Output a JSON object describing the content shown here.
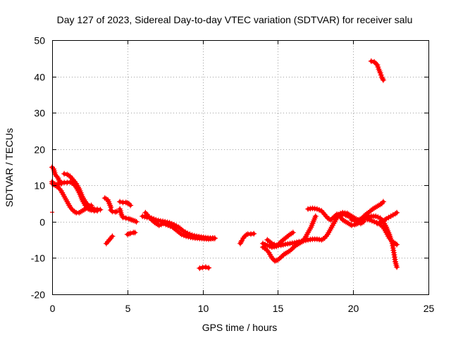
{
  "chart_data": {
    "type": "scatter",
    "title": "Day 127 of 2023, Sidereal Day-to-day VTEC variation (SDTVAR) for receiver salu",
    "xlabel": "GPS time / hours",
    "ylabel": "SDTVAR / TECUs",
    "xlim": [
      0,
      25
    ],
    "ylim": [
      -20,
      50
    ],
    "x_ticks": [
      0,
      5,
      10,
      15,
      20,
      25
    ],
    "y_ticks": [
      -20,
      -10,
      0,
      10,
      20,
      30,
      40,
      50
    ],
    "x_tick_labels": [
      "0",
      "5",
      "10",
      "15",
      "20",
      "25"
    ],
    "y_tick_labels": [
      "-20",
      "-10",
      "0",
      "10",
      "20",
      "30",
      "40",
      "50"
    ],
    "grid": true,
    "legend": "none",
    "marker": "plus",
    "color": "#ff0000",
    "series": [
      {
        "name": "s1",
        "points": [
          [
            0.0,
            15.0
          ],
          [
            0.1,
            14.5
          ],
          [
            0.2,
            13.0
          ],
          [
            0.3,
            12.5
          ],
          [
            0.4,
            12.0
          ],
          [
            0.5,
            11.0
          ],
          [
            0.6,
            10.5
          ]
        ]
      },
      {
        "name": "s2",
        "points": [
          [
            0.0,
            11.0
          ],
          [
            0.1,
            10.5
          ],
          [
            0.2,
            10.3
          ],
          [
            0.3,
            10.2
          ],
          [
            0.5,
            10.5
          ],
          [
            0.8,
            10.8
          ],
          [
            1.0,
            10.8
          ],
          [
            1.2,
            10.9
          ],
          [
            1.4,
            10.5
          ],
          [
            1.6,
            9.5
          ],
          [
            1.8,
            8.0
          ],
          [
            2.0,
            6.0
          ],
          [
            2.2,
            4.5
          ],
          [
            2.4,
            3.5
          ],
          [
            2.6,
            3.2
          ],
          [
            2.8,
            3.0
          ],
          [
            3.0,
            3.0
          ]
        ]
      },
      {
        "name": "s3",
        "points": [
          [
            0.0,
            10.5
          ],
          [
            0.2,
            10.0
          ],
          [
            0.4,
            9.5
          ],
          [
            0.6,
            8.5
          ],
          [
            0.8,
            7.0
          ],
          [
            1.0,
            5.5
          ],
          [
            1.2,
            4.0
          ],
          [
            1.4,
            3.0
          ],
          [
            1.6,
            2.5
          ],
          [
            1.8,
            2.5
          ],
          [
            2.0,
            3.0
          ],
          [
            2.2,
            3.5
          ],
          [
            2.4,
            4.0
          ],
          [
            2.6,
            4.5
          ]
        ]
      },
      {
        "name": "s4",
        "points": [
          [
            0.8,
            13.2
          ],
          [
            1.0,
            13.0
          ],
          [
            1.2,
            12.5
          ],
          [
            1.4,
            11.5
          ],
          [
            1.6,
            10.5
          ],
          [
            1.8,
            9.0
          ],
          [
            2.0,
            7.0
          ],
          [
            2.2,
            5.5
          ],
          [
            2.4,
            4.5
          ],
          [
            2.6,
            3.8
          ],
          [
            2.8,
            3.5
          ],
          [
            3.0,
            3.4
          ],
          [
            3.2,
            3.3
          ]
        ]
      },
      {
        "name": "s5",
        "points": [
          [
            3.5,
            6.5
          ],
          [
            3.7,
            6.0
          ],
          [
            3.8,
            5.0
          ],
          [
            3.9,
            4.0
          ],
          [
            3.9,
            3.2
          ],
          [
            4.0,
            2.8
          ],
          [
            4.2,
            2.7
          ],
          [
            4.3,
            2.8
          ]
        ]
      },
      {
        "name": "s6",
        "points": [
          [
            3.6,
            -6.0
          ],
          [
            3.7,
            -5.5
          ],
          [
            3.8,
            -5.0
          ],
          [
            3.9,
            -4.5
          ],
          [
            4.0,
            -4.0
          ]
        ]
      },
      {
        "name": "s7",
        "points": [
          [
            4.5,
            5.5
          ],
          [
            4.7,
            5.3
          ],
          [
            4.9,
            5.3
          ],
          [
            5.1,
            5.0
          ],
          [
            5.2,
            4.5
          ]
        ]
      },
      {
        "name": "s8",
        "points": [
          [
            4.5,
            3.5
          ],
          [
            4.6,
            2.0
          ],
          [
            4.7,
            1.2
          ],
          [
            4.9,
            1.0
          ],
          [
            5.1,
            0.8
          ],
          [
            5.3,
            0.5
          ],
          [
            5.5,
            0.2
          ],
          [
            5.6,
            0.0
          ]
        ]
      },
      {
        "name": "s9",
        "points": [
          [
            5.0,
            -3.5
          ],
          [
            5.2,
            -3.2
          ],
          [
            5.4,
            -3.0
          ],
          [
            5.5,
            -3.0
          ]
        ]
      },
      {
        "name": "s10",
        "points": [
          [
            6.0,
            1.5
          ],
          [
            6.3,
            1.2
          ],
          [
            6.6,
            1.0
          ],
          [
            6.9,
            0.5
          ],
          [
            7.2,
            0.2
          ],
          [
            7.5,
            0.0
          ],
          [
            7.8,
            -0.3
          ],
          [
            8.1,
            -0.8
          ],
          [
            8.4,
            -1.5
          ],
          [
            8.7,
            -2.5
          ],
          [
            9.0,
            -3.2
          ],
          [
            9.3,
            -3.7
          ],
          [
            9.6,
            -4.0
          ],
          [
            9.9,
            -4.2
          ],
          [
            10.2,
            -4.4
          ],
          [
            10.5,
            -4.5
          ],
          [
            10.8,
            -4.6
          ]
        ]
      },
      {
        "name": "s11",
        "points": [
          [
            6.2,
            2.5
          ],
          [
            6.5,
            1.0
          ],
          [
            6.8,
            -0.2
          ],
          [
            7.1,
            -1.0
          ],
          [
            7.4,
            -0.5
          ],
          [
            7.7,
            -1.0
          ],
          [
            8.0,
            -1.5
          ],
          [
            8.3,
            -2.5
          ],
          [
            8.6,
            -3.5
          ],
          [
            8.9,
            -4.0
          ],
          [
            9.2,
            -4.3
          ],
          [
            9.5,
            -4.5
          ],
          [
            9.8,
            -4.6
          ],
          [
            10.1,
            -4.7
          ],
          [
            10.4,
            -4.8
          ],
          [
            10.7,
            -4.6
          ],
          [
            10.8,
            -4.5
          ]
        ]
      },
      {
        "name": "s12",
        "points": [
          [
            9.8,
            -12.8
          ],
          [
            10.0,
            -12.6
          ],
          [
            10.2,
            -12.5
          ],
          [
            10.4,
            -12.7
          ]
        ]
      },
      {
        "name": "s13",
        "points": [
          [
            12.5,
            -6.0
          ],
          [
            12.6,
            -5.2
          ],
          [
            12.7,
            -4.5
          ],
          [
            12.8,
            -4.0
          ],
          [
            12.9,
            -3.6
          ],
          [
            13.0,
            -3.4
          ],
          [
            13.2,
            -3.4
          ],
          [
            13.4,
            -3.3
          ]
        ]
      },
      {
        "name": "s14",
        "points": [
          [
            14.0,
            -7.0
          ],
          [
            14.2,
            -7.5
          ],
          [
            14.4,
            -8.5
          ],
          [
            14.6,
            -10.0
          ],
          [
            14.8,
            -10.8
          ],
          [
            15.0,
            -10.5
          ],
          [
            15.2,
            -9.8
          ],
          [
            15.4,
            -9.0
          ],
          [
            15.6,
            -8.5
          ],
          [
            15.8,
            -8.0
          ],
          [
            16.0,
            -7.2
          ],
          [
            16.2,
            -6.5
          ],
          [
            16.4,
            -6.0
          ],
          [
            16.6,
            -5.5
          ],
          [
            16.8,
            -4.5
          ],
          [
            17.0,
            -3.0
          ],
          [
            17.2,
            -1.5
          ],
          [
            17.3,
            -0.5
          ],
          [
            17.4,
            0.5
          ],
          [
            17.5,
            1.5
          ]
        ]
      },
      {
        "name": "s15",
        "points": [
          [
            14.0,
            -6.0
          ],
          [
            14.3,
            -6.5
          ],
          [
            14.6,
            -7.0
          ],
          [
            14.9,
            -6.8
          ],
          [
            15.2,
            -5.5
          ],
          [
            15.5,
            -4.5
          ],
          [
            15.8,
            -3.5
          ],
          [
            16.0,
            -3.0
          ]
        ]
      },
      {
        "name": "s16",
        "points": [
          [
            14.3,
            -5.0
          ],
          [
            14.6,
            -6.0
          ],
          [
            14.9,
            -6.5
          ],
          [
            15.2,
            -6.5
          ],
          [
            15.5,
            -6.2
          ],
          [
            15.8,
            -6.0
          ],
          [
            16.1,
            -5.8
          ],
          [
            16.4,
            -5.5
          ],
          [
            16.7,
            -5.3
          ],
          [
            17.0,
            -5.0
          ],
          [
            17.3,
            -4.8
          ],
          [
            17.6,
            -4.8
          ],
          [
            17.9,
            -5.0
          ],
          [
            18.1,
            -4.5
          ],
          [
            18.3,
            -3.5
          ],
          [
            18.5,
            -2.0
          ],
          [
            18.7,
            -0.5
          ],
          [
            18.9,
            1.0
          ],
          [
            19.1,
            1.8
          ],
          [
            19.3,
            2.0
          ],
          [
            19.5,
            1.8
          ],
          [
            19.7,
            1.5
          ],
          [
            19.9,
            1.0
          ],
          [
            20.1,
            0.5
          ],
          [
            20.3,
            0.0
          ],
          [
            20.5,
            -0.5
          ],
          [
            20.7,
            0.0
          ]
        ]
      },
      {
        "name": "s17",
        "points": [
          [
            17.0,
            3.5
          ],
          [
            17.3,
            3.7
          ],
          [
            17.6,
            3.5
          ],
          [
            17.9,
            3.0
          ],
          [
            18.1,
            2.0
          ],
          [
            18.3,
            1.0
          ],
          [
            18.5,
            0.5
          ],
          [
            18.7,
            1.2
          ],
          [
            18.9,
            2.0
          ],
          [
            19.1,
            1.5
          ],
          [
            19.3,
            0.5
          ],
          [
            19.5,
            0.0
          ],
          [
            19.7,
            -0.5
          ],
          [
            19.9,
            -1.0
          ],
          [
            20.1,
            -0.8
          ],
          [
            20.3,
            -0.5
          ],
          [
            20.5,
            0.5
          ],
          [
            20.7,
            1.5
          ],
          [
            20.9,
            2.2
          ],
          [
            21.1,
            2.8
          ],
          [
            21.3,
            3.5
          ],
          [
            21.5,
            4.0
          ],
          [
            21.7,
            4.5
          ],
          [
            21.9,
            5.0
          ],
          [
            22.0,
            5.5
          ]
        ]
      },
      {
        "name": "s18",
        "points": [
          [
            18.8,
            1.5
          ],
          [
            19.0,
            2.0
          ],
          [
            19.3,
            2.5
          ],
          [
            19.6,
            2.3
          ],
          [
            19.9,
            1.5
          ],
          [
            20.1,
            1.0
          ],
          [
            20.3,
            0.5
          ],
          [
            20.6,
            0.8
          ],
          [
            20.9,
            1.2
          ],
          [
            21.2,
            1.5
          ],
          [
            21.5,
            1.5
          ],
          [
            21.8,
            1.0
          ],
          [
            22.0,
            0.0
          ],
          [
            22.2,
            -1.5
          ],
          [
            22.4,
            -3.5
          ],
          [
            22.6,
            -6.0
          ],
          [
            22.7,
            -8.5
          ],
          [
            22.8,
            -11.0
          ],
          [
            22.9,
            -12.5
          ]
        ]
      },
      {
        "name": "s19",
        "points": [
          [
            19.9,
            0.5
          ],
          [
            20.2,
            0.3
          ],
          [
            20.5,
            0.6
          ],
          [
            20.8,
            0.8
          ],
          [
            21.1,
            0.5
          ],
          [
            21.4,
            0.0
          ],
          [
            21.7,
            -0.5
          ],
          [
            22.0,
            -1.5
          ],
          [
            22.2,
            -3.0
          ],
          [
            22.4,
            -4.5
          ],
          [
            22.6,
            -5.5
          ],
          [
            22.8,
            -6.0
          ],
          [
            22.9,
            -6.3
          ]
        ]
      },
      {
        "name": "s20",
        "points": [
          [
            21.6,
            -0.5
          ],
          [
            21.9,
            0.0
          ],
          [
            22.2,
            0.8
          ],
          [
            22.5,
            1.5
          ],
          [
            22.8,
            2.2
          ],
          [
            22.9,
            2.5
          ]
        ]
      },
      {
        "name": "s21",
        "points": [
          [
            21.2,
            44.2
          ],
          [
            21.4,
            44.0
          ],
          [
            21.6,
            43.2
          ],
          [
            21.7,
            42.0
          ],
          [
            21.8,
            41.0
          ],
          [
            21.9,
            39.8
          ],
          [
            22.0,
            39.0
          ]
        ]
      },
      {
        "name": "s22",
        "points": [
          [
            0.0,
            2.6
          ]
        ]
      }
    ]
  }
}
